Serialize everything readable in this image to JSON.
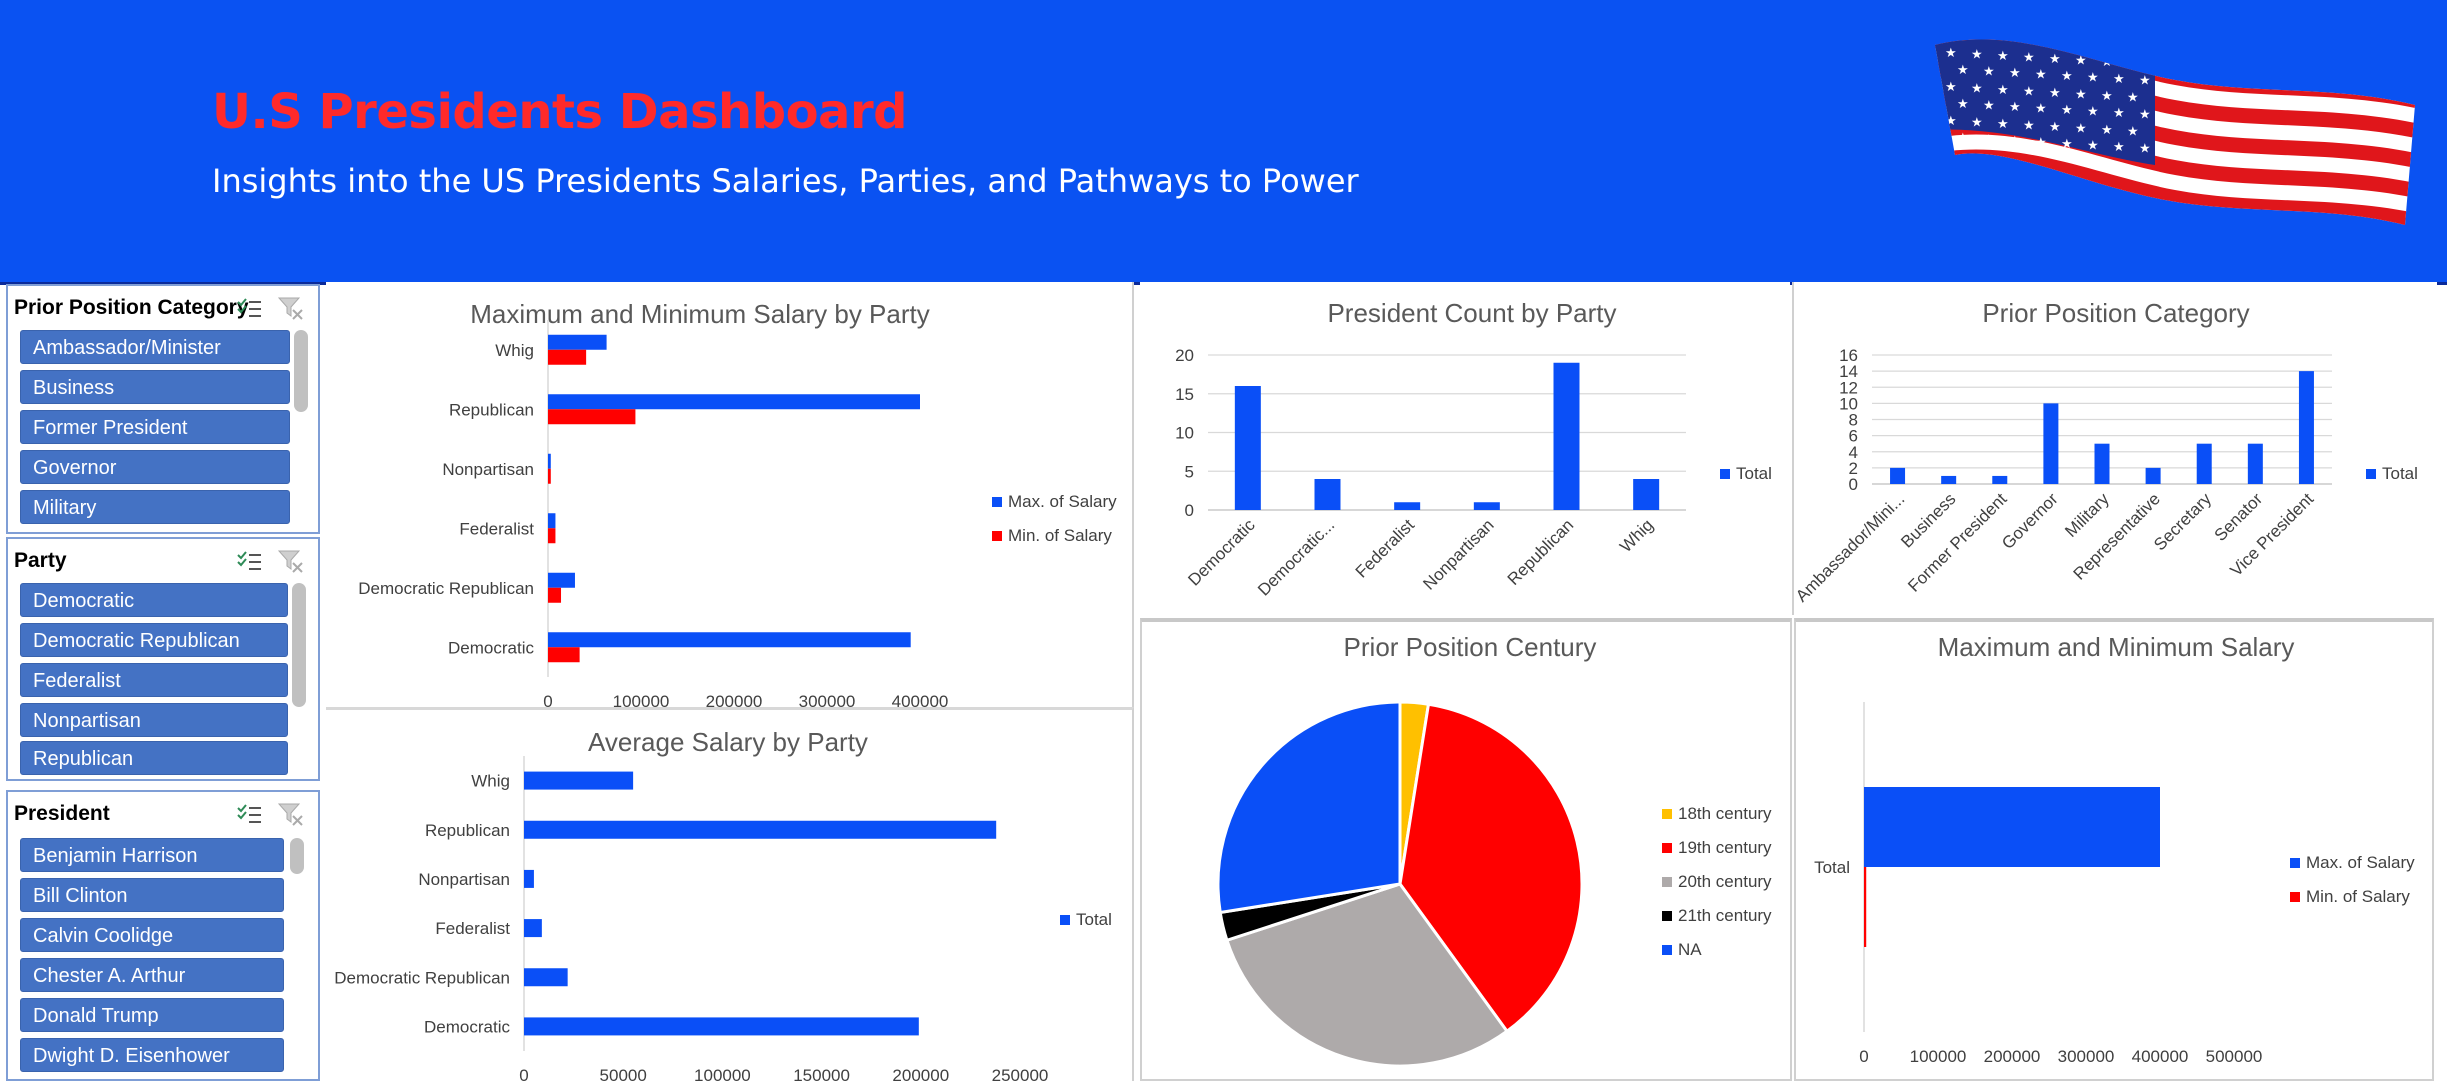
{
  "header": {
    "title": "U.S Presidents Dashboard",
    "subtitle": "Insights into the US Presidents Salaries, Parties, and Pathways to Power",
    "flag_icon": "us-flag-icon"
  },
  "colors": {
    "banner": "#0a52f2",
    "title": "#ff2a2a",
    "blue": "#0a4ff7",
    "red": "#ff0000",
    "gray": "#aeaaaa",
    "yellow": "#ffc000",
    "black": "#000000"
  },
  "slicers": [
    {
      "title": "Prior Position Category",
      "items": [
        "Ambassador/Minister",
        "Business",
        "Former President",
        "Governor",
        "Military"
      ]
    },
    {
      "title": "Party",
      "items": [
        "Democratic",
        "Democratic Republican",
        "Federalist",
        "Nonpartisan",
        "Republican"
      ]
    },
    {
      "title": "President",
      "items": [
        "Benjamin Harrison",
        "Bill Clinton",
        "Calvin Coolidge",
        "Chester A. Arthur",
        "Donald Trump",
        "Dwight D. Eisenhower"
      ]
    }
  ],
  "chart_data": [
    {
      "id": "maxmin_party",
      "type": "bar",
      "orientation": "horizontal",
      "title": "Maximum and Minimum Salary by Party",
      "categories": [
        "Whig",
        "Republican",
        "Nonpartisan",
        "Federalist",
        "Democratic Republican",
        "Democratic"
      ],
      "series": [
        {
          "name": "Max. of Salary",
          "color": "#0a4ff7",
          "values": [
            63000,
            400000,
            3000,
            8000,
            29000,
            390000
          ]
        },
        {
          "name": "Min. of Salary",
          "color": "#ff0000",
          "values": [
            41000,
            94000,
            3000,
            8000,
            14000,
            34000
          ]
        }
      ],
      "xlim": [
        0,
        400000
      ],
      "xticks": [
        "0",
        "100000",
        "200000",
        "300000",
        "400000"
      ],
      "legend": "right"
    },
    {
      "id": "avg_party",
      "type": "bar",
      "orientation": "horizontal",
      "title": "Average Salary by Party",
      "categories": [
        "Whig",
        "Republican",
        "Nonpartisan",
        "Federalist",
        "Democratic Republican",
        "Democratic"
      ],
      "series": [
        {
          "name": "Total",
          "color": "#0a4ff7",
          "values": [
            55000,
            238000,
            5000,
            9000,
            22000,
            199000
          ]
        }
      ],
      "xlim": [
        0,
        250000
      ],
      "xticks": [
        "0",
        "50000",
        "100000",
        "150000",
        "200000",
        "250000"
      ],
      "legend": "right"
    },
    {
      "id": "count_party",
      "type": "bar",
      "orientation": "vertical",
      "title": "President Count by Party",
      "categories": [
        "Democratic",
        "Democratic...",
        "Federalist",
        "Nonpartisan",
        "Republican",
        "Whig"
      ],
      "series": [
        {
          "name": "Total",
          "color": "#0a4ff7",
          "values": [
            16,
            4,
            1,
            1,
            19,
            4
          ]
        }
      ],
      "ylim": [
        0,
        20
      ],
      "yticks": [
        "0",
        "5",
        "10",
        "15",
        "20"
      ],
      "grid": true,
      "legend": "right"
    },
    {
      "id": "prior_category",
      "type": "bar",
      "orientation": "vertical",
      "title": "Prior Position Category",
      "categories": [
        "Ambassador/Mini...",
        "Business",
        "Former President",
        "Governor",
        "Military",
        "Representative",
        "Secretary",
        "Senator",
        "Vice President"
      ],
      "series": [
        {
          "name": "Total",
          "color": "#0a4ff7",
          "values": [
            2,
            1,
            1,
            10,
            5,
            2,
            5,
            5,
            14
          ]
        }
      ],
      "ylim": [
        0,
        16
      ],
      "yticks": [
        "0",
        "2",
        "4",
        "6",
        "8",
        "10",
        "12",
        "14",
        "16"
      ],
      "grid": true,
      "legend": "right"
    },
    {
      "id": "prior_century",
      "type": "pie",
      "title": "Prior Position Century",
      "slices": [
        {
          "label": "18th century",
          "value": 2.5,
          "color": "#ffc000"
        },
        {
          "label": "19th century",
          "value": 37.5,
          "color": "#ff0000"
        },
        {
          "label": "20th century",
          "value": 30,
          "color": "#aeaaaa"
        },
        {
          "label": "21th century",
          "value": 2.5,
          "color": "#000000"
        },
        {
          "label": "NA",
          "value": 27.5,
          "color": "#0a4ff7"
        }
      ],
      "legend": "right"
    },
    {
      "id": "maxmin_total",
      "type": "bar",
      "orientation": "horizontal",
      "title": "Maximum and Minimum Salary",
      "categories": [
        "Total"
      ],
      "series": [
        {
          "name": "Max. of Salary",
          "color": "#0a4ff7",
          "values": [
            400000
          ]
        },
        {
          "name": "Min. of Salary",
          "color": "#ff0000",
          "values": [
            3000
          ]
        }
      ],
      "xlim": [
        0,
        500000
      ],
      "xticks": [
        "0",
        "100000",
        "200000",
        "300000",
        "400000",
        "500000"
      ],
      "legend": "right"
    }
  ]
}
